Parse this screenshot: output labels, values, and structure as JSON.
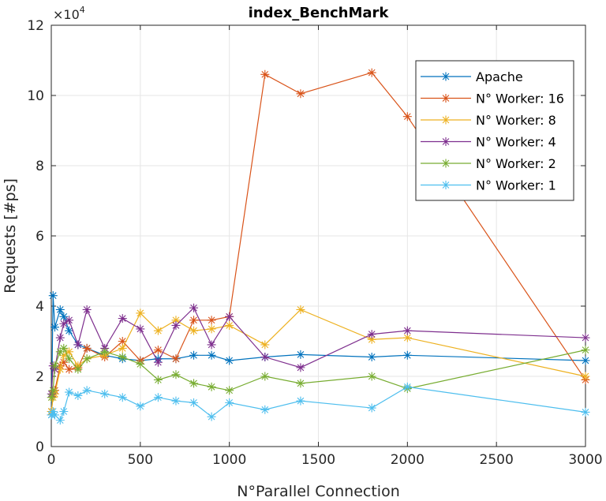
{
  "chart_data": {
    "type": "line",
    "title": "index_BenchMark",
    "xlabel": "N°Parallel Connection",
    "ylabel": "Requests [#ps]",
    "xlim": [
      0,
      3000
    ],
    "ylim": [
      0,
      12
    ],
    "y_exponent_label": "×10",
    "y_exponent_power": "4",
    "xticks": [
      "0",
      "500",
      "1000",
      "1500",
      "2000",
      "2500",
      "3000"
    ],
    "yticks": [
      "0",
      "2",
      "4",
      "6",
      "8",
      "10",
      "12"
    ],
    "grid": true,
    "legend_position": "top-right",
    "x": [
      1,
      10,
      20,
      50,
      70,
      100,
      150,
      200,
      300,
      400,
      500,
      600,
      700,
      800,
      900,
      1000,
      1200,
      1400,
      1800,
      2000,
      3000
    ],
    "series": [
      {
        "name": "Apache",
        "color": "#0072BD",
        "values": [
          0.9,
          4.3,
          3.4,
          3.9,
          3.7,
          3.3,
          2.9,
          2.8,
          2.6,
          2.5,
          2.45,
          2.5,
          2.5,
          2.6,
          2.6,
          2.45,
          2.55,
          2.62,
          2.55,
          2.6,
          2.45
        ]
      },
      {
        "name": "N° Worker: 16",
        "color": "#D95319",
        "values": [
          1.0,
          1.5,
          1.6,
          2.3,
          2.4,
          2.2,
          2.25,
          2.8,
          2.55,
          3.0,
          2.45,
          2.75,
          2.5,
          3.6,
          3.6,
          3.7,
          10.6,
          10.05,
          10.65,
          9.4,
          1.9
        ]
      },
      {
        "name": "N° Worker: 8",
        "color": "#EDB120",
        "values": [
          1.0,
          1.4,
          1.5,
          2.2,
          2.6,
          2.7,
          2.3,
          2.5,
          2.6,
          2.8,
          3.8,
          3.3,
          3.6,
          3.3,
          3.35,
          3.45,
          2.9,
          3.9,
          3.05,
          3.1,
          2.0
        ]
      },
      {
        "name": "N° Worker: 4",
        "color": "#7E2F8E",
        "values": [
          1.5,
          2.3,
          2.2,
          3.1,
          3.5,
          3.6,
          2.9,
          3.9,
          2.8,
          3.65,
          3.35,
          2.4,
          3.45,
          3.95,
          2.9,
          3.7,
          2.55,
          2.25,
          3.2,
          3.3,
          3.1
        ]
      },
      {
        "name": "N° Worker: 2",
        "color": "#77AC30",
        "values": [
          1.4,
          1.6,
          2.3,
          2.7,
          2.8,
          2.5,
          2.2,
          2.5,
          2.7,
          2.55,
          2.35,
          1.9,
          2.05,
          1.8,
          1.7,
          1.6,
          2.0,
          1.8,
          2.0,
          1.65,
          2.75
        ]
      },
      {
        "name": "N° Worker: 1",
        "color": "#4DBEEE",
        "values": [
          0.9,
          1.0,
          0.9,
          0.75,
          1.0,
          1.55,
          1.45,
          1.6,
          1.5,
          1.4,
          1.15,
          1.4,
          1.3,
          1.25,
          0.85,
          1.25,
          1.05,
          1.3,
          1.1,
          1.7,
          0.98
        ]
      }
    ]
  }
}
